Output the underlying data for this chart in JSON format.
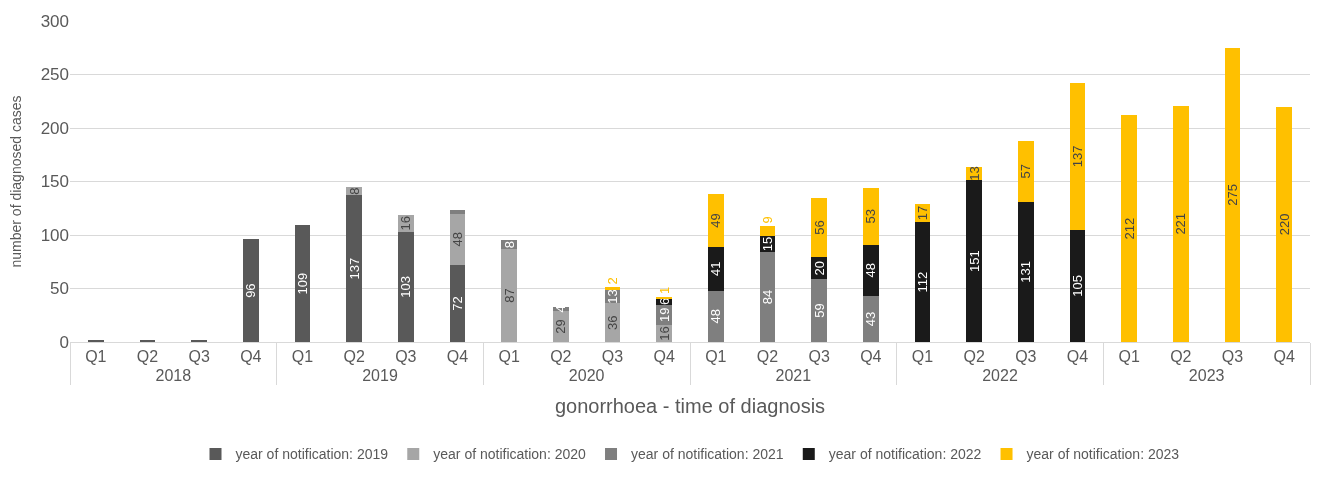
{
  "chart_data": {
    "type": "bar",
    "stacked": true,
    "xlabel": "gonorrhoea - time of diagnosis",
    "ylabel": "number of diagnosed cases",
    "categories": [
      "Q1",
      "Q2",
      "Q3",
      "Q4",
      "Q1",
      "Q2",
      "Q3",
      "Q4",
      "Q1",
      "Q2",
      "Q3",
      "Q4",
      "Q1",
      "Q2",
      "Q3",
      "Q4",
      "Q1",
      "Q2",
      "Q3",
      "Q4",
      "Q1",
      "Q2",
      "Q3",
      "Q4"
    ],
    "annotations": [
      "2018",
      "2019",
      "2020",
      "2021",
      "2022",
      "2023"
    ],
    "series": [
      {
        "name": "year of notification: 2019",
        "color": "#595959",
        "values": [
          1,
          1,
          1,
          96,
          109,
          137,
          103,
          72,
          null,
          null,
          null,
          null,
          null,
          null,
          null,
          null,
          null,
          null,
          null,
          null,
          null,
          null,
          null,
          null
        ],
        "value_labels": [
          null,
          null,
          null,
          "96",
          "109",
          "137",
          "103",
          "72",
          null,
          null,
          null,
          null,
          null,
          null,
          null,
          null,
          null,
          null,
          null,
          null,
          null,
          null,
          null,
          null
        ]
      },
      {
        "name": "year of notification: 2020",
        "color": "#a6a6a6",
        "values": [
          null,
          null,
          null,
          null,
          null,
          8,
          16,
          48,
          87,
          29,
          36,
          16,
          null,
          null,
          null,
          null,
          null,
          null,
          null,
          null,
          null,
          null,
          null,
          null
        ],
        "value_labels": [
          null,
          null,
          null,
          null,
          null,
          "8",
          "16",
          "48",
          "87",
          "29",
          "36",
          "16",
          null,
          null,
          null,
          null,
          null,
          null,
          null,
          null,
          null,
          null,
          null,
          null
        ]
      },
      {
        "name": "year of notification: 2021",
        "color": "#7f7f7f",
        "values": [
          null,
          null,
          null,
          null,
          null,
          null,
          null,
          3,
          8,
          4,
          13,
          19,
          48,
          84,
          59,
          43,
          null,
          null,
          null,
          null,
          null,
          null,
          null,
          null
        ],
        "value_labels": [
          null,
          null,
          null,
          null,
          null,
          null,
          null,
          null,
          "8",
          "4",
          "13",
          "19",
          "48",
          "84",
          "59",
          "43",
          null,
          null,
          null,
          null,
          null,
          null,
          null,
          null
        ]
      },
      {
        "name": "year of notification: 2022",
        "color": "#1a1a1a",
        "values": [
          null,
          null,
          null,
          null,
          null,
          null,
          null,
          null,
          null,
          null,
          null,
          6,
          41,
          15,
          20,
          48,
          112,
          151,
          131,
          105,
          null,
          null,
          null,
          null
        ],
        "value_labels": [
          null,
          null,
          null,
          null,
          null,
          null,
          null,
          null,
          null,
          null,
          null,
          "6",
          "41",
          "15",
          "20",
          "48",
          "112",
          "151",
          "131",
          "105",
          null,
          null,
          null,
          null
        ]
      },
      {
        "name": "year of notification: 2023",
        "color": "#ffc000",
        "values": [
          null,
          null,
          null,
          null,
          null,
          null,
          null,
          null,
          null,
          null,
          2,
          1,
          49,
          9,
          56,
          53,
          17,
          13,
          57,
          137,
          212,
          221,
          275,
          220
        ],
        "value_labels": [
          null,
          null,
          null,
          null,
          null,
          null,
          null,
          null,
          null,
          null,
          "2",
          "1",
          "49",
          "9",
          "56",
          "53",
          "17",
          "13",
          "57",
          "137",
          "212",
          "221",
          "275",
          "220"
        ]
      }
    ],
    "ylim": [
      0,
      300
    ],
    "yticks": [
      0,
      50,
      100,
      150,
      200,
      250,
      300
    ],
    "grid": "y",
    "legend": "bottom"
  }
}
